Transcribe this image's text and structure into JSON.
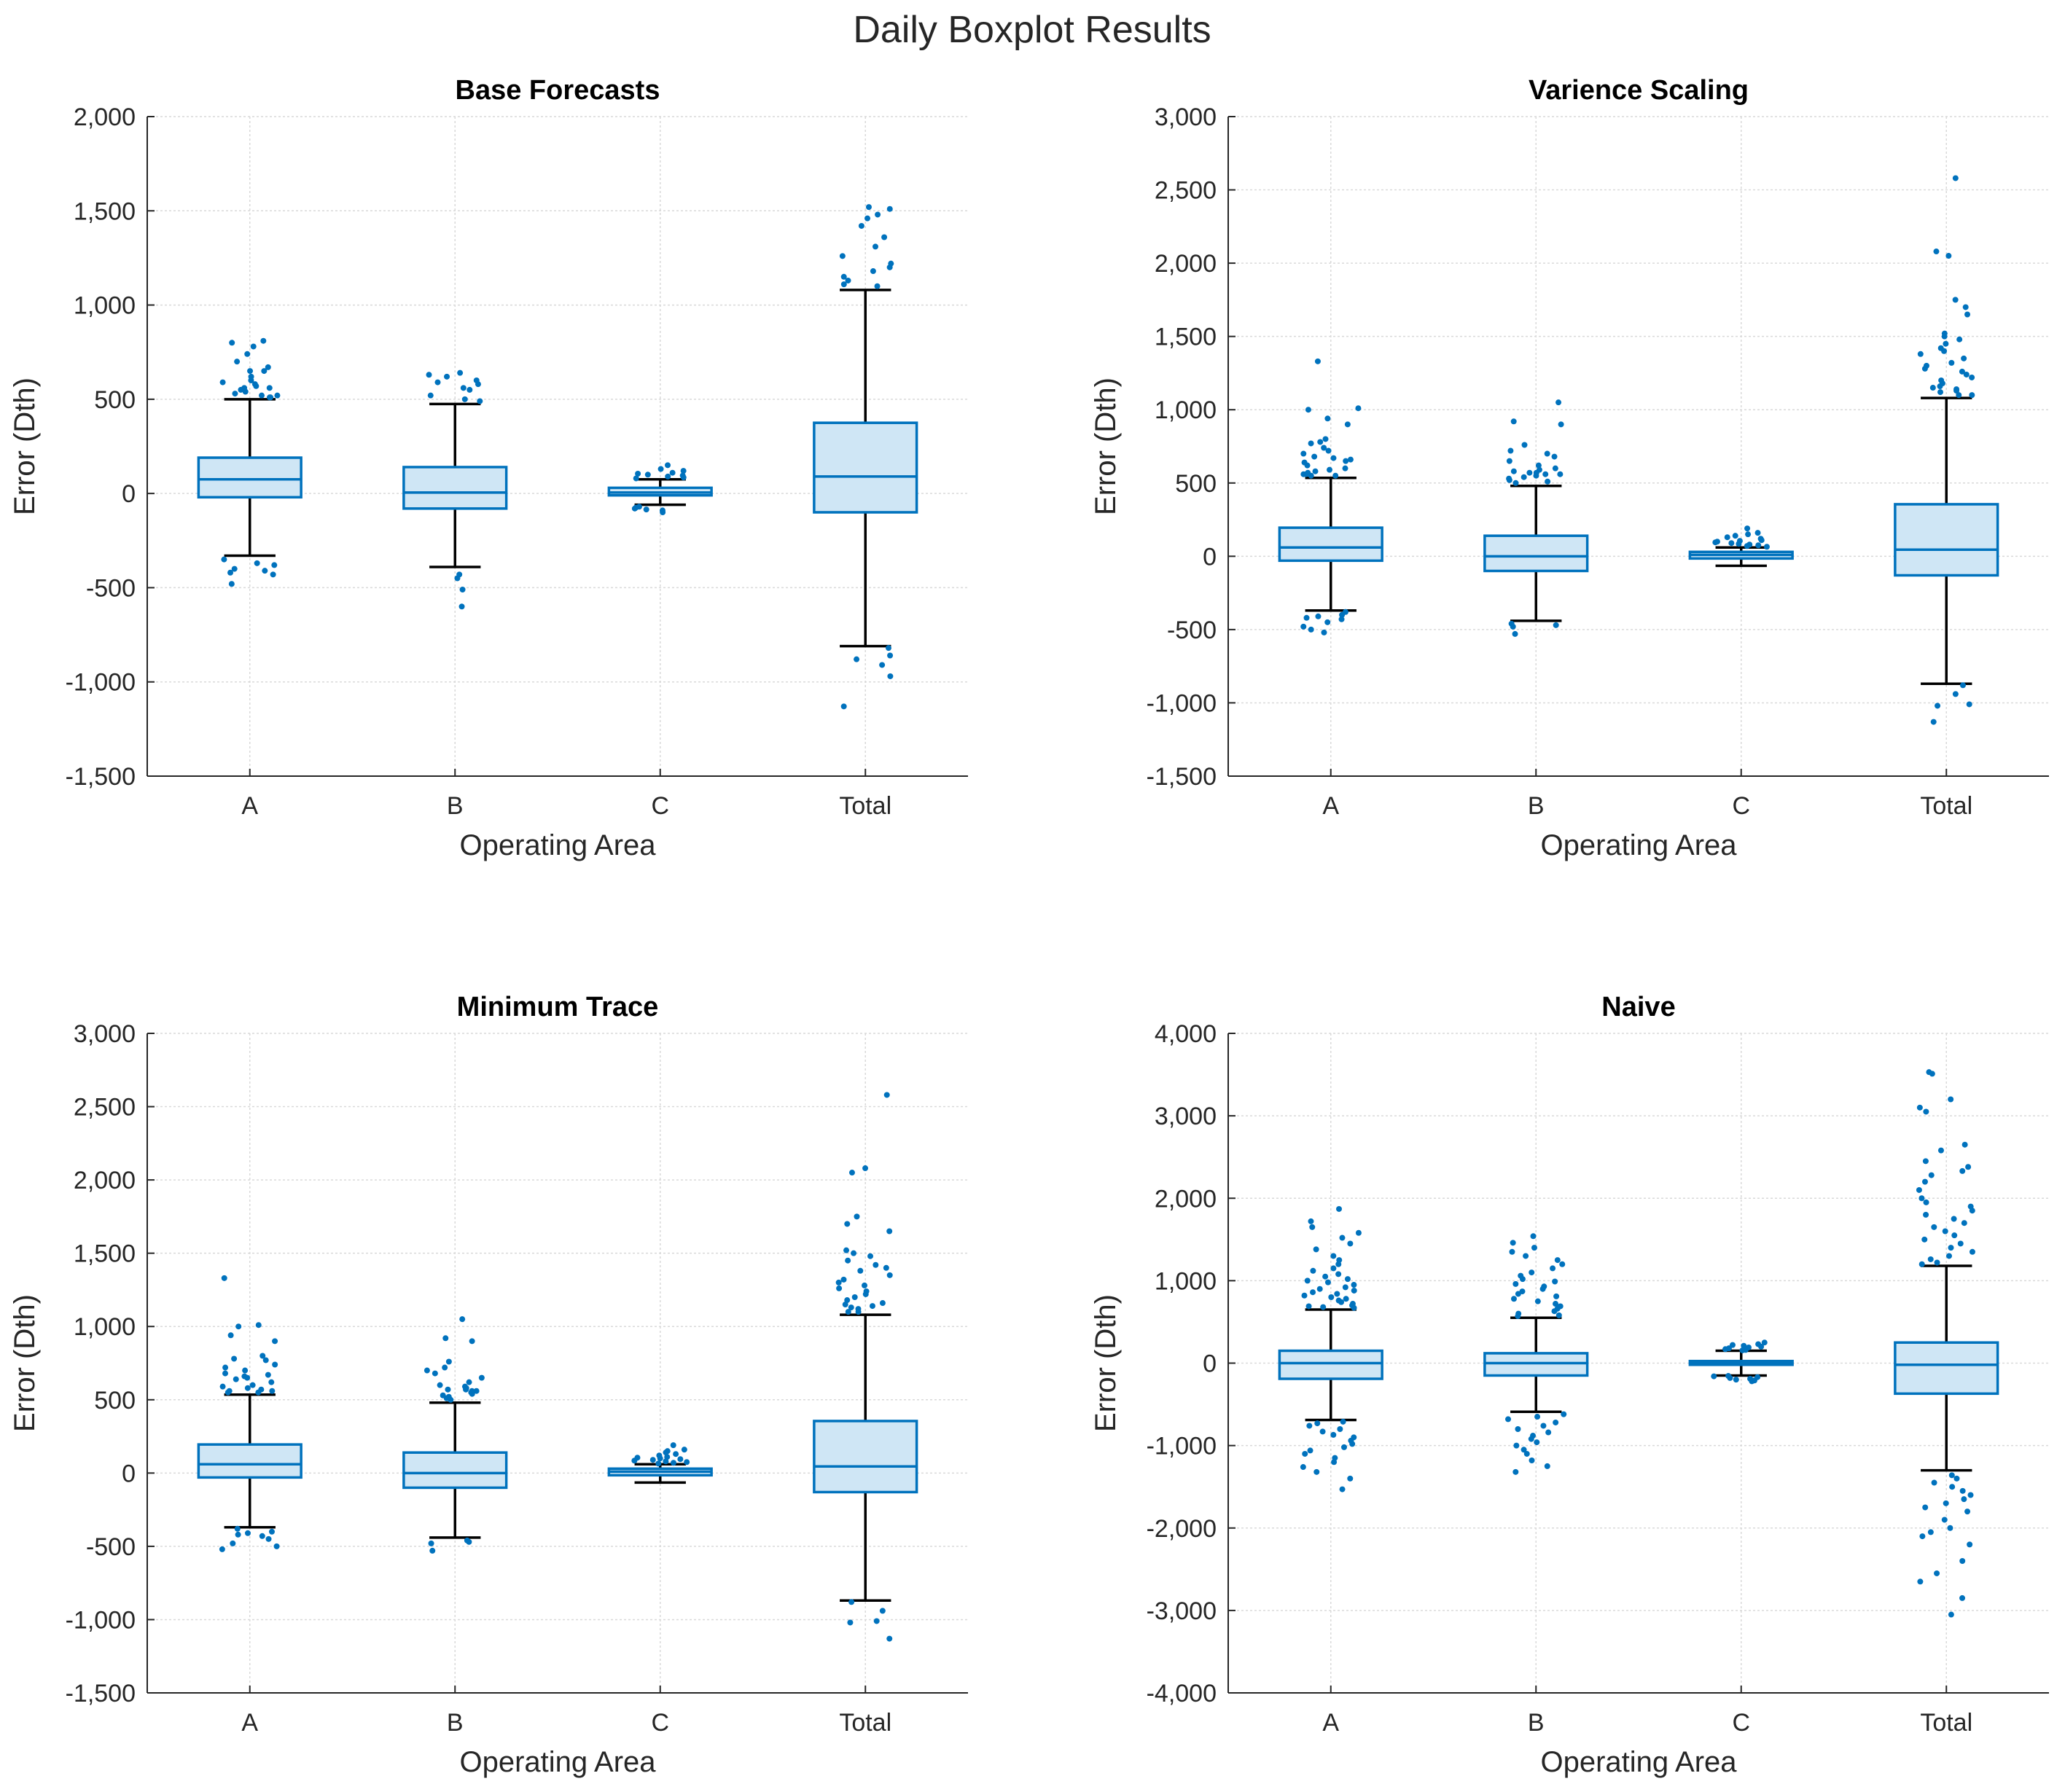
{
  "figure_title": "Daily Boxplot Results",
  "colors": {
    "box_fill": "#cfe6f5",
    "box_edge": "#0072bd",
    "whisker": "#000000",
    "outlier": "#0072bd"
  },
  "chart_data": [
    {
      "type": "box",
      "title": "Base Forecasts",
      "xlabel": "Operating Area",
      "ylabel": "Error (Dth)",
      "ylim": [
        -1500,
        2000
      ],
      "yticks": [
        -1500,
        -1000,
        -500,
        0,
        500,
        1000,
        1500,
        2000
      ],
      "ytick_labels": [
        "-1,500",
        "-1,000",
        "-500",
        "0",
        "500",
        "1,000",
        "1,500",
        "2,000"
      ],
      "categories": [
        "A",
        "B",
        "C",
        "Total"
      ],
      "grid": true,
      "boxes": [
        {
          "whisker_low": -330,
          "q1": -20,
          "median": 75,
          "q3": 190,
          "whisker_high": 500,
          "outliers": [
            800,
            810,
            780,
            740,
            700,
            670,
            650,
            650,
            620,
            600,
            590,
            580,
            570,
            560,
            560,
            550,
            540,
            530,
            520,
            520,
            510,
            510,
            -350,
            -370,
            -380,
            -400,
            -410,
            -420,
            -430,
            -480
          ]
        },
        {
          "whisker_low": -390,
          "q1": -80,
          "median": 5,
          "q3": 140,
          "whisker_high": 475,
          "outliers": [
            640,
            630,
            620,
            600,
            590,
            580,
            560,
            550,
            520,
            500,
            490,
            -430,
            -450,
            -510,
            -600
          ]
        },
        {
          "whisker_low": -60,
          "q1": -10,
          "median": 5,
          "q3": 30,
          "whisker_high": 75,
          "outliers": [
            150,
            130,
            120,
            110,
            105,
            100,
            95,
            90,
            85,
            80,
            -70,
            -75,
            -80,
            -85,
            -90,
            -100
          ]
        },
        {
          "whisker_low": -810,
          "q1": -100,
          "median": 90,
          "q3": 375,
          "whisker_high": 1080,
          "outliers": [
            1520,
            1510,
            1480,
            1460,
            1420,
            1360,
            1310,
            1260,
            1220,
            1200,
            1180,
            1150,
            1130,
            1110,
            1100,
            -820,
            -860,
            -880,
            -910,
            -970,
            -1130
          ]
        }
      ]
    },
    {
      "type": "box",
      "title": "Varience Scaling",
      "xlabel": "Operating Area",
      "ylabel": "Error (Dth)",
      "ylim": [
        -1500,
        3000
      ],
      "yticks": [
        -1500,
        -1000,
        -500,
        0,
        500,
        1000,
        1500,
        2000,
        2500,
        3000
      ],
      "ytick_labels": [
        "-1,500",
        "-1,000",
        "-500",
        "0",
        "500",
        "1,000",
        "1,500",
        "2,000",
        "2,500",
        "3,000"
      ],
      "categories": [
        "A",
        "B",
        "C",
        "Total"
      ],
      "grid": true,
      "boxes": [
        {
          "whisker_low": -370,
          "q1": -30,
          "median": 60,
          "q3": 195,
          "whisker_high": 535,
          "outliers": [
            1330,
            1010,
            1000,
            940,
            900,
            800,
            780,
            770,
            740,
            720,
            700,
            680,
            670,
            660,
            650,
            640,
            620,
            600,
            590,
            580,
            570,
            560,
            560,
            550,
            550,
            -380,
            -400,
            -410,
            -420,
            -430,
            -450,
            -480,
            -500,
            -520
          ]
        },
        {
          "whisker_low": -440,
          "q1": -100,
          "median": 0,
          "q3": 140,
          "whisker_high": 480,
          "outliers": [
            1050,
            920,
            900,
            760,
            720,
            700,
            680,
            650,
            620,
            600,
            590,
            580,
            570,
            570,
            560,
            560,
            550,
            540,
            530,
            520,
            510,
            500,
            -460,
            -470,
            -480,
            -530
          ]
        },
        {
          "whisker_low": -65,
          "q1": -15,
          "median": 10,
          "q3": 30,
          "whisker_high": 60,
          "outliers": [
            190,
            160,
            150,
            140,
            130,
            120,
            110,
            105,
            100,
            95,
            90,
            85,
            80,
            75,
            70,
            65
          ]
        },
        {
          "whisker_low": -870,
          "q1": -130,
          "median": 45,
          "q3": 355,
          "whisker_high": 1080,
          "outliers": [
            2580,
            2080,
            2050,
            1750,
            1700,
            1650,
            1520,
            1500,
            1480,
            1450,
            1420,
            1400,
            1380,
            1350,
            1320,
            1300,
            1280,
            1260,
            1240,
            1220,
            1200,
            1180,
            1160,
            1150,
            1140,
            1130,
            1120,
            1100,
            1100,
            -880,
            -940,
            -1010,
            -1020,
            -1130
          ]
        }
      ]
    },
    {
      "type": "box",
      "title": "Minimum Trace",
      "xlabel": "Operating Area",
      "ylabel": "Error (Dth)",
      "ylim": [
        -1500,
        3000
      ],
      "yticks": [
        -1500,
        -1000,
        -500,
        0,
        500,
        1000,
        1500,
        2000,
        2500,
        3000
      ],
      "ytick_labels": [
        "-1,500",
        "-1,000",
        "-500",
        "0",
        "500",
        "1,000",
        "1,500",
        "2,000",
        "2,500",
        "3,000"
      ],
      "categories": [
        "A",
        "B",
        "C",
        "Total"
      ],
      "grid": true,
      "boxes": [
        {
          "whisker_low": -370,
          "q1": -30,
          "median": 60,
          "q3": 195,
          "whisker_high": 535,
          "outliers": [
            1330,
            1010,
            1000,
            940,
            900,
            800,
            780,
            770,
            740,
            720,
            700,
            680,
            670,
            660,
            650,
            640,
            620,
            600,
            590,
            580,
            570,
            560,
            560,
            550,
            550,
            -380,
            -400,
            -410,
            -420,
            -430,
            -450,
            -480,
            -500,
            -520
          ]
        },
        {
          "whisker_low": -440,
          "q1": -100,
          "median": 0,
          "q3": 140,
          "whisker_high": 480,
          "outliers": [
            1050,
            920,
            900,
            760,
            720,
            700,
            680,
            650,
            620,
            600,
            590,
            580,
            570,
            570,
            560,
            560,
            550,
            540,
            530,
            520,
            510,
            500,
            -460,
            -470,
            -480,
            -530
          ]
        },
        {
          "whisker_low": -65,
          "q1": -15,
          "median": 10,
          "q3": 30,
          "whisker_high": 60,
          "outliers": [
            190,
            160,
            150,
            140,
            130,
            120,
            110,
            105,
            100,
            95,
            90,
            85,
            80,
            75,
            70,
            65
          ]
        },
        {
          "whisker_low": -870,
          "q1": -130,
          "median": 45,
          "q3": 355,
          "whisker_high": 1080,
          "outliers": [
            2580,
            2080,
            2050,
            1750,
            1700,
            1650,
            1520,
            1500,
            1480,
            1450,
            1420,
            1400,
            1380,
            1350,
            1320,
            1300,
            1280,
            1260,
            1240,
            1220,
            1200,
            1180,
            1160,
            1150,
            1140,
            1130,
            1120,
            1100,
            1100,
            -880,
            -940,
            -1010,
            -1020,
            -1130
          ]
        }
      ]
    },
    {
      "type": "box",
      "title": "Naive",
      "xlabel": "Operating Area",
      "ylabel": "Error (Dth)",
      "ylim": [
        -4000,
        4000
      ],
      "yticks": [
        -4000,
        -3000,
        -2000,
        -1000,
        0,
        1000,
        2000,
        3000,
        4000
      ],
      "ytick_labels": [
        "-4,000",
        "-3,000",
        "-2,000",
        "-1,000",
        "0",
        "1,000",
        "2,000",
        "3,000",
        "4,000"
      ],
      "categories": [
        "A",
        "B",
        "C",
        "Total"
      ],
      "grid": true,
      "boxes": [
        {
          "whisker_low": -690,
          "q1": -190,
          "median": 0,
          "q3": 150,
          "whisker_high": 650,
          "outliers": [
            1870,
            1720,
            1650,
            1580,
            1520,
            1450,
            1380,
            1300,
            1250,
            1200,
            1150,
            1120,
            1080,
            1050,
            1020,
            1000,
            980,
            950,
            920,
            900,
            880,
            860,
            840,
            820,
            800,
            780,
            760,
            740,
            720,
            700,
            690,
            680,
            670,
            -710,
            -730,
            -760,
            -800,
            -830,
            -870,
            -900,
            -940,
            -980,
            -1020,
            -1060,
            -1100,
            -1150,
            -1200,
            -1260,
            -1320,
            -1400,
            -1530
          ]
        },
        {
          "whisker_low": -590,
          "q1": -150,
          "median": 0,
          "q3": 120,
          "whisker_high": 550,
          "outliers": [
            1540,
            1460,
            1400,
            1350,
            1300,
            1250,
            1200,
            1150,
            1100,
            1060,
            1020,
            990,
            960,
            930,
            900,
            870,
            840,
            810,
            780,
            750,
            720,
            690,
            660,
            630,
            600,
            580,
            570,
            -620,
            -650,
            -680,
            -720,
            -760,
            -800,
            -840,
            -880,
            -920,
            -960,
            -1000,
            -1050,
            -1100,
            -1180,
            -1250,
            -1320
          ]
        },
        {
          "whisker_low": -150,
          "q1": -20,
          "median": 5,
          "q3": 25,
          "whisker_high": 150,
          "outliers": [
            250,
            230,
            220,
            210,
            200,
            190,
            180,
            170,
            160,
            155,
            -155,
            -160,
            -170,
            -180,
            -190,
            -200,
            -210,
            -220
          ]
        },
        {
          "whisker_low": -1300,
          "q1": -370,
          "median": -20,
          "q3": 250,
          "whisker_high": 1180,
          "outliers": [
            3530,
            3510,
            3200,
            3100,
            3050,
            2650,
            2580,
            2450,
            2380,
            2330,
            2280,
            2200,
            2100,
            2000,
            1950,
            1900,
            1850,
            1800,
            1750,
            1700,
            1650,
            1600,
            1550,
            1500,
            1450,
            1400,
            1350,
            1300,
            1260,
            1220,
            1200,
            -1360,
            -1400,
            -1450,
            -1500,
            -1550,
            -1600,
            -1650,
            -1700,
            -1750,
            -1800,
            -1900,
            -2000,
            -2050,
            -2100,
            -2200,
            -2400,
            -2550,
            -2650,
            -2850,
            -3050
          ]
        }
      ]
    }
  ]
}
